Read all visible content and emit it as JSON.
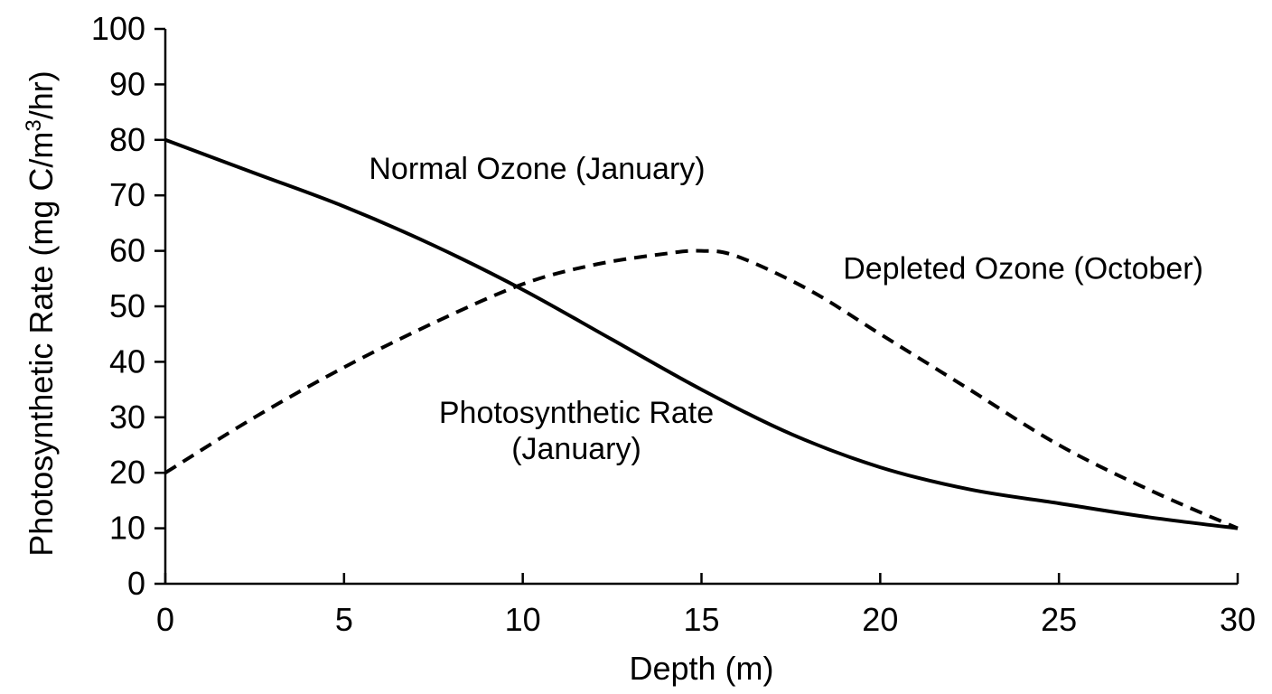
{
  "chart_data": {
    "type": "line",
    "title": "",
    "xlabel": "Depth (m)",
    "ylabel_parts": {
      "before": "Photosynthetic Rate (mg C/m",
      "superscript": "3",
      "after": "/hr)"
    },
    "xlim": [
      0,
      30
    ],
    "ylim": [
      0,
      100
    ],
    "x_ticks": [
      "0",
      "5",
      "10",
      "15",
      "20",
      "25",
      "30"
    ],
    "y_ticks": [
      "0",
      "10",
      "20",
      "30",
      "40",
      "50",
      "60",
      "70",
      "80",
      "90",
      "100"
    ],
    "grid": false,
    "legend": "none",
    "series": [
      {
        "style": "solid",
        "x": [
          0,
          2.5,
          5,
          7.5,
          10,
          12.5,
          15,
          17.5,
          20,
          22.5,
          25,
          27.5,
          30
        ],
        "values": [
          80,
          74,
          68,
          61,
          53,
          44,
          35,
          27,
          21,
          17,
          14.5,
          12,
          10
        ]
      },
      {
        "style": "dashed",
        "x": [
          0,
          2.5,
          5,
          7.5,
          10,
          12,
          14,
          15,
          16,
          18,
          20,
          22.5,
          25,
          27.5,
          30
        ],
        "values": [
          20,
          30,
          39,
          47,
          54,
          57.5,
          59.5,
          60,
          59,
          53,
          45,
          35,
          25,
          17,
          10
        ]
      }
    ],
    "annotations": [
      {
        "text": "Normal Ozone (January)",
        "x": 10.4,
        "y": 73
      },
      {
        "text": "Depleted Ozone (October)",
        "x": 24,
        "y": 55
      },
      {
        "text": "Photosynthetic Rate",
        "x": 11.5,
        "y": 29
      },
      {
        "text": "(January)",
        "x": 11.5,
        "y": 22.5
      }
    ]
  }
}
